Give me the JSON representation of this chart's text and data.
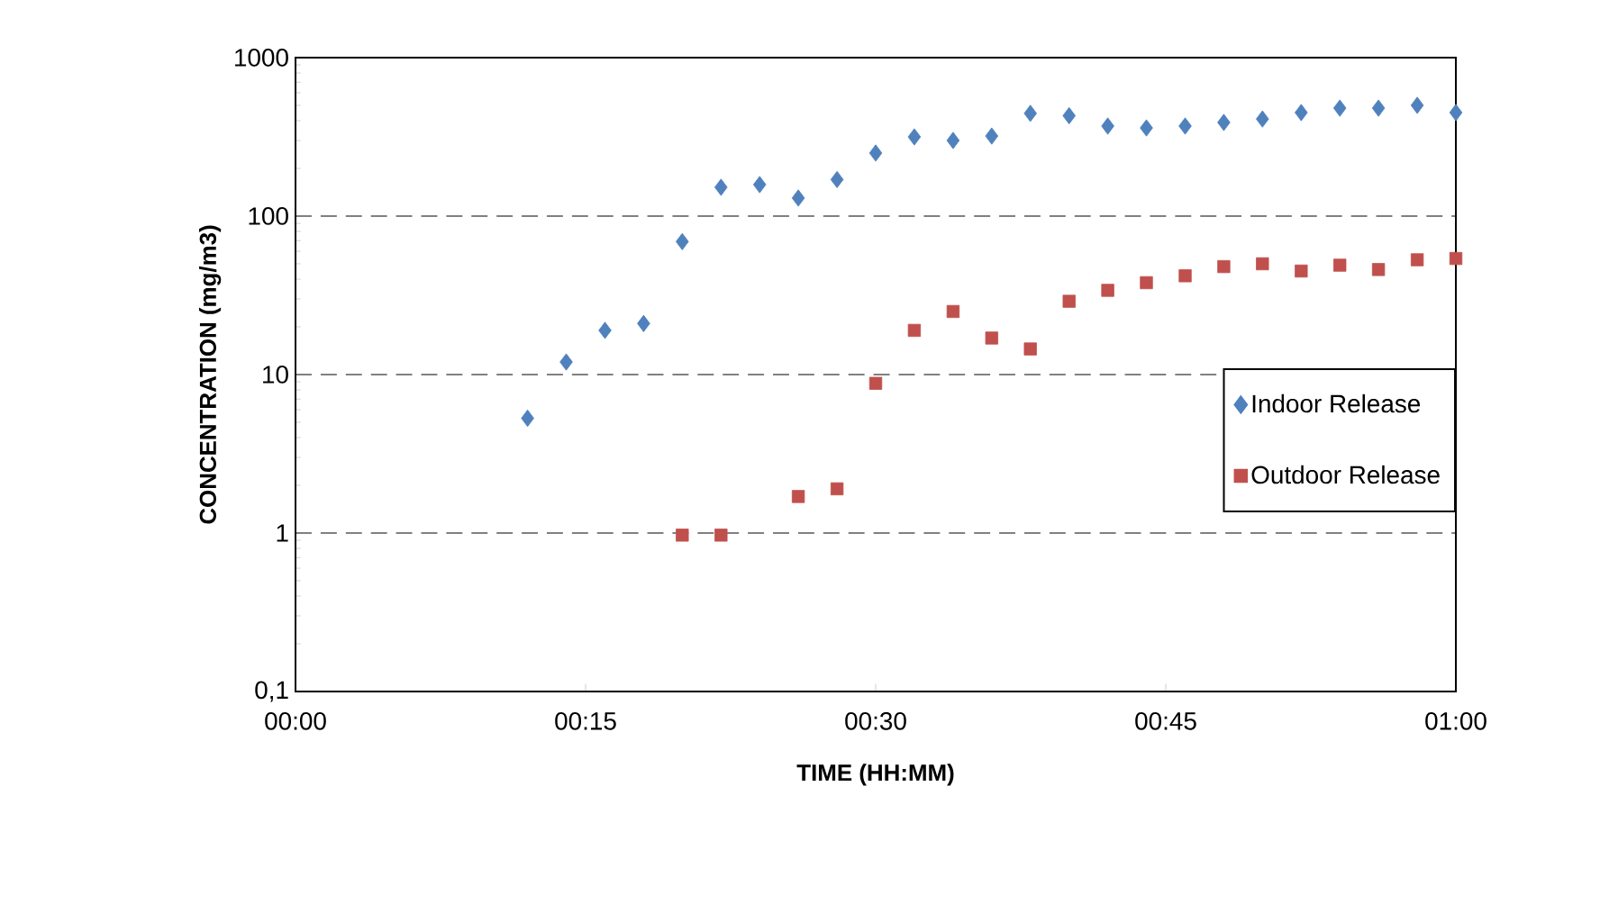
{
  "chart_data": {
    "type": "scatter",
    "xlabel": "TIME (HH:MM)",
    "ylabel": "CONCENTRATION (mg/m3)",
    "log": "y",
    "grid": "y",
    "legend": "right",
    "xlim": [
      0,
      1
    ],
    "xticks": [
      {
        "value": 0,
        "label": "00:00"
      },
      {
        "value": 0.25,
        "label": "00:15"
      },
      {
        "value": 0.5,
        "label": "00:30"
      },
      {
        "value": 0.75,
        "label": "00:45"
      },
      {
        "value": 1,
        "label": "01:00"
      }
    ],
    "ylim": [
      0.1,
      1000
    ],
    "yticks": [
      {
        "value": 0.1,
        "label": "0,1"
      },
      1,
      10,
      100,
      1000
    ],
    "series": [
      {
        "name": "Indoor Release",
        "color": "#4f81bd",
        "marker": "diamond",
        "x": [
          0.2,
          0.2333,
          0.2667,
          0.3,
          0.3333,
          0.3667,
          0.4,
          0.4333,
          0.4667,
          0.5,
          0.5333,
          0.5667,
          0.6,
          0.6333,
          0.6667,
          0.7,
          0.7333,
          0.7667,
          0.8,
          0.8333,
          0.8667,
          0.9,
          0.9333,
          0.9667,
          1.0
        ],
        "values": [
          5.3,
          12,
          19,
          21,
          69,
          152,
          158,
          130,
          170,
          250,
          316,
          300,
          320,
          445,
          430,
          370,
          360,
          370,
          390,
          410,
          450,
          480,
          480,
          500,
          450
        ]
      },
      {
        "name": "Outdoor Release",
        "color": "#c0504d",
        "marker": "square",
        "x": [
          0.3333,
          0.3667,
          0.4333,
          0.4667,
          0.5,
          0.5333,
          0.5667,
          0.6,
          0.6333,
          0.6667,
          0.7,
          0.7333,
          0.7667,
          0.8,
          0.8333,
          0.8667,
          0.9,
          0.9333,
          0.9667,
          1.0
        ],
        "values": [
          0.97,
          0.97,
          1.7,
          1.9,
          8.8,
          19,
          25,
          17,
          14.5,
          29,
          34,
          38,
          42,
          48,
          50,
          45,
          49,
          46,
          53,
          54
        ]
      }
    ]
  }
}
